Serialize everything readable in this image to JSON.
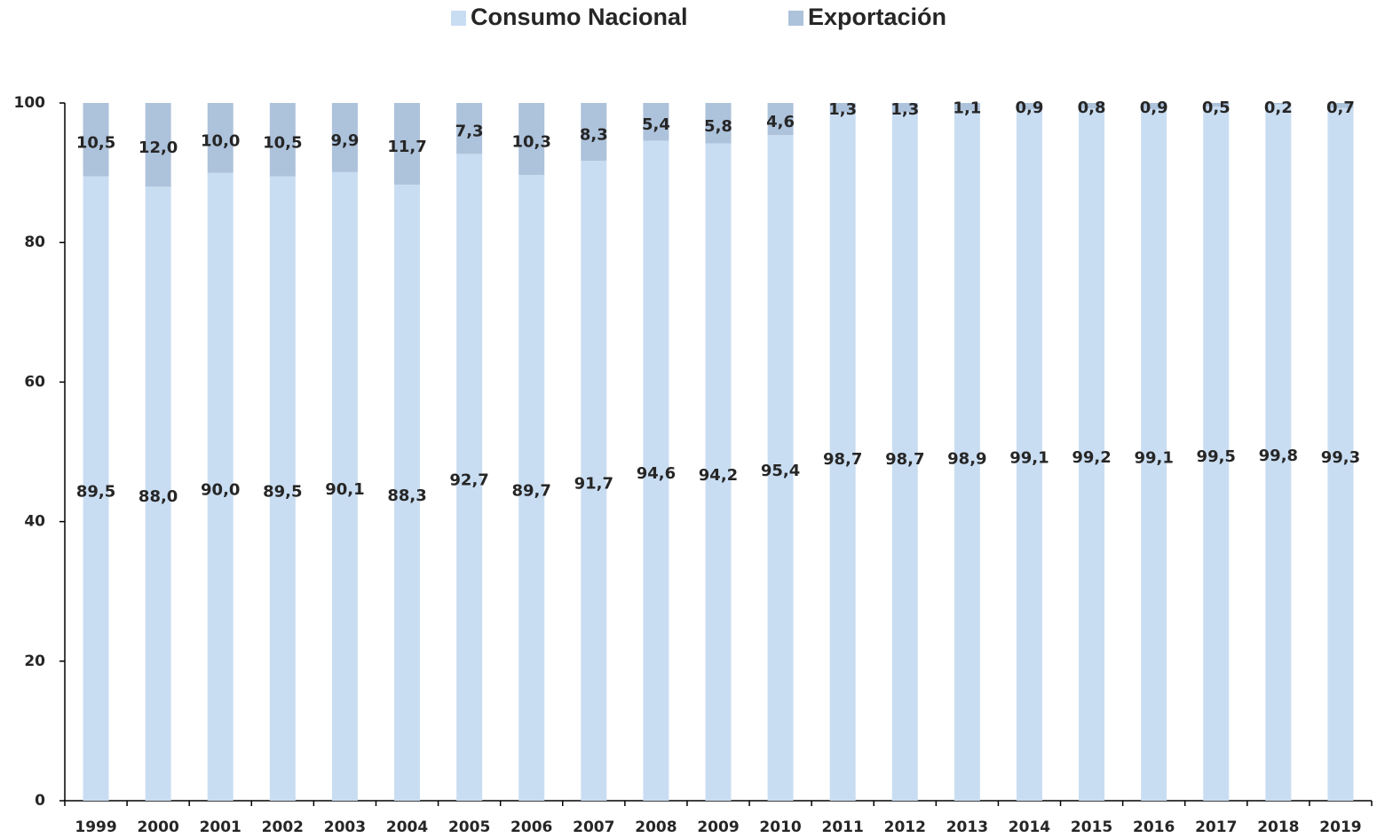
{
  "chart_data": {
    "type": "stacked_bar",
    "categories": [
      "1999",
      "2000",
      "2001",
      "2002",
      "2003",
      "2004",
      "2005",
      "2006",
      "2007",
      "2008",
      "2009",
      "2010",
      "2011",
      "2012",
      "2013",
      "2014",
      "2015",
      "2016",
      "2017",
      "2018",
      "2019"
    ],
    "series": [
      {
        "name": "Consumo Nacional",
        "color": "#c9ddf2",
        "values": [
          89.5,
          88.0,
          90.0,
          89.5,
          90.1,
          88.3,
          92.7,
          89.7,
          91.7,
          94.6,
          94.2,
          95.4,
          98.7,
          98.7,
          98.9,
          99.1,
          99.2,
          99.1,
          99.5,
          99.8,
          99.3
        ],
        "value_labels": [
          "89,5",
          "88,0",
          "90,0",
          "89,5",
          "90,1",
          "88,3",
          "92,7",
          "89,7",
          "91,7",
          "94,6",
          "94,2",
          "95,4",
          "98,7",
          "98,7",
          "98,9",
          "99,1",
          "99,2",
          "99,1",
          "99,5",
          "99,8",
          "99,3"
        ]
      },
      {
        "name": "Exportación",
        "color": "#adc2db",
        "values": [
          10.5,
          12.0,
          10.0,
          10.5,
          9.9,
          11.7,
          7.3,
          10.3,
          8.3,
          5.4,
          5.8,
          4.6,
          1.3,
          1.3,
          1.1,
          0.9,
          0.8,
          0.9,
          0.5,
          0.2,
          0.7
        ],
        "value_labels": [
          "10,5",
          "12,0",
          "10,0",
          "10,5",
          "9,9",
          "11,7",
          "7,3",
          "10,3",
          "8,3",
          "5,4",
          "5,8",
          "4,6",
          "1,3",
          "1,3",
          "1,1",
          "0,9",
          "0,8",
          "0,9",
          "0,5",
          "0,2",
          "0,7"
        ]
      }
    ],
    "ylim": [
      0,
      100
    ],
    "yticks": [
      0,
      20,
      40,
      60,
      80,
      100
    ],
    "grid": false,
    "legend": "top"
  }
}
